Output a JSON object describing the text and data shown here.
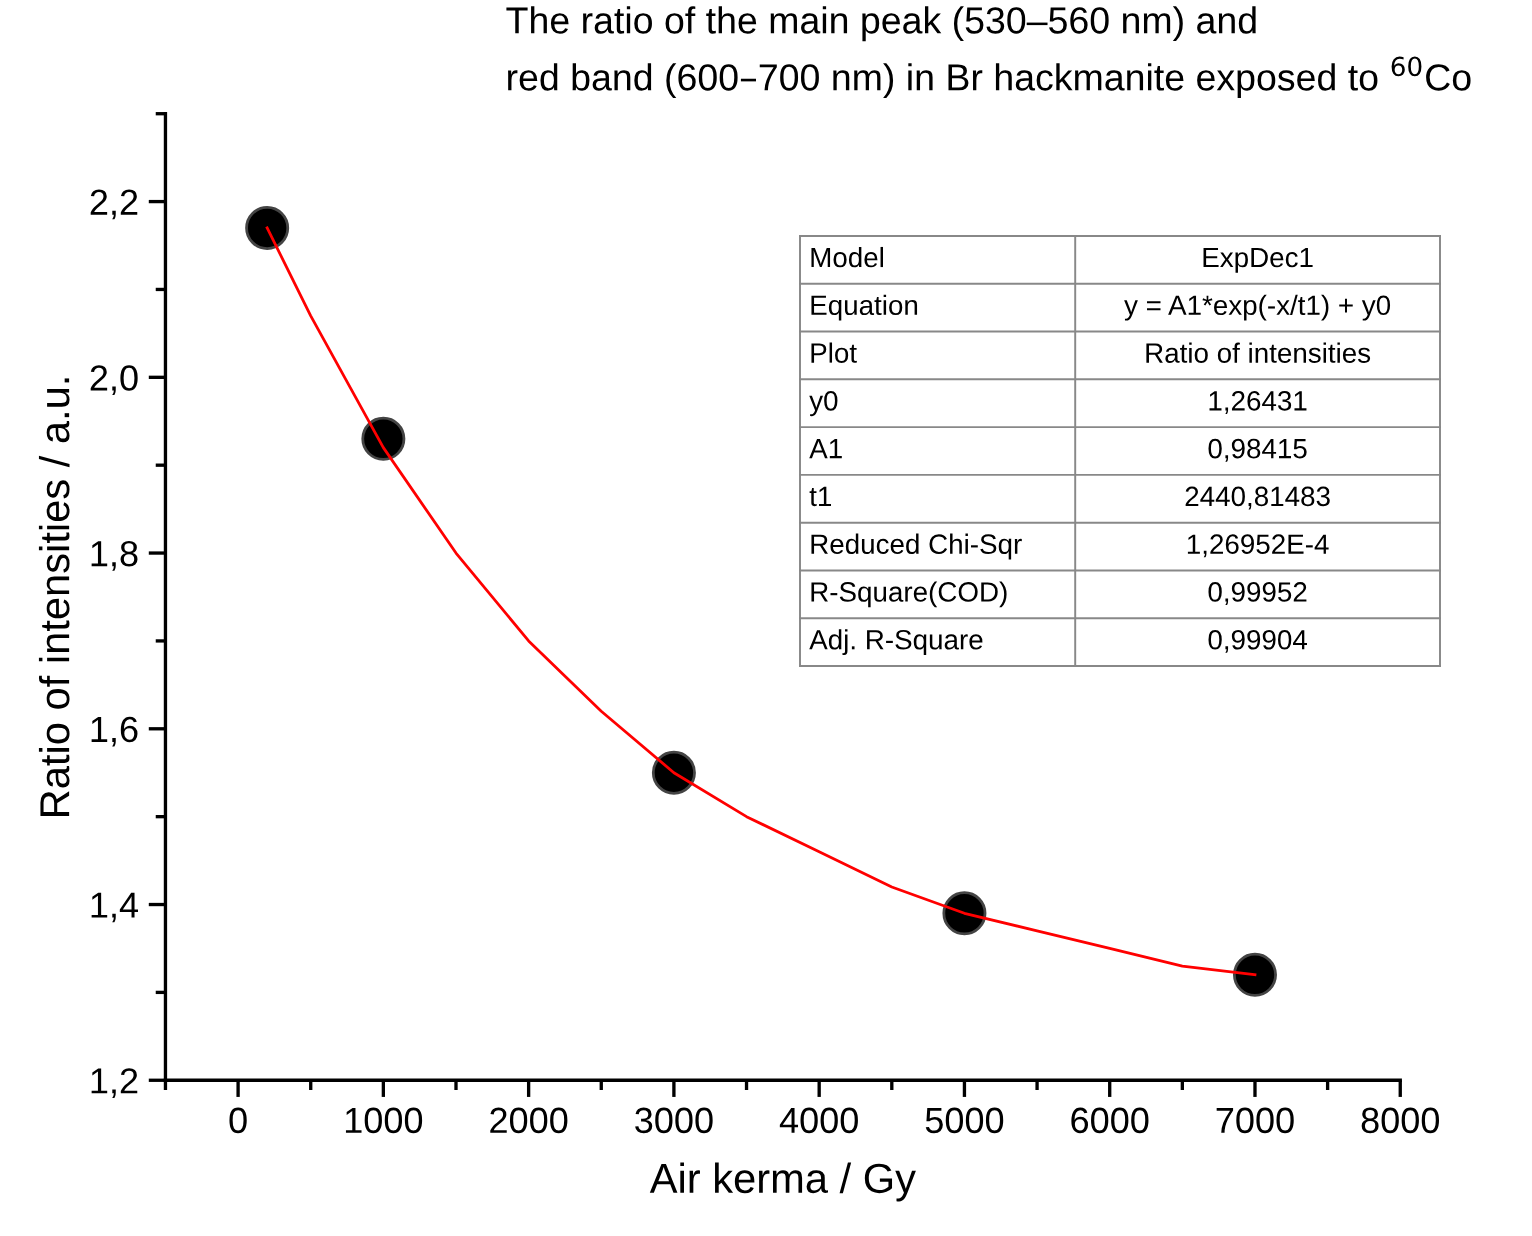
{
  "chart_data": {
    "type": "scatter",
    "title": "The ratio of the main peak (530–560 nm) and\nred band (600–700 nm) in Br hackmanite exposed to $^{60}$Co",
    "xlabel": "Air kerma / Gy",
    "ylabel": "Ratio of intensities / a.u.",
    "x": [
      200,
      1000,
      3000,
      5000,
      7000
    ],
    "series": [
      {
        "color": "#000000",
        "marker": "circle",
        "values": [
          2.17,
          1.93,
          1.55,
          1.39,
          1.32
        ]
      },
      {
        "type": "line",
        "color": "#ff0000",
        "marker": "none",
        "line_style": "solid",
        "x": [
          200,
          500,
          1000,
          1500,
          2000,
          2500,
          3000,
          3500,
          4000,
          4500,
          5000,
          5500,
          6000,
          6500,
          7000
        ],
        "values": [
          2.17,
          2.07,
          1.92,
          1.8,
          1.7,
          1.62,
          1.55,
          1.5,
          1.46,
          1.42,
          1.39,
          1.37,
          1.35,
          1.33,
          1.32
        ]
      }
    ],
    "xlim": [
      -500,
      8000
    ],
    "ylim": [
      1.2,
      2.3
    ],
    "xticks": [
      0,
      1000,
      2000,
      3000,
      4000,
      5000,
      6000,
      7000,
      8000
    ],
    "yticks": [
      {
        "value": 1.2,
        "label": "1,2"
      },
      {
        "value": 1.4,
        "label": "1,4"
      },
      {
        "value": 1.6,
        "label": "1,6"
      },
      {
        "value": 1.8,
        "label": "1,8"
      },
      {
        "value": 2.0,
        "label": "2,0"
      },
      {
        "value": 2.2,
        "label": "2,2"
      }
    ],
    "grid": false,
    "annotations": [
      "Model",
      "ExpDec1",
      "Equation",
      "y = A1*exp(-x/t1) + y0",
      "Plot",
      "Ratio of intensities",
      "y0",
      "1,26431",
      "A1",
      "0,98415",
      "t1",
      "2440,81483",
      "Reduced Chi-Sqr",
      "1,26952E-4",
      "R-Square(COD)",
      "0,99952",
      "Adj. R-Square",
      "0,99904"
    ]
  }
}
